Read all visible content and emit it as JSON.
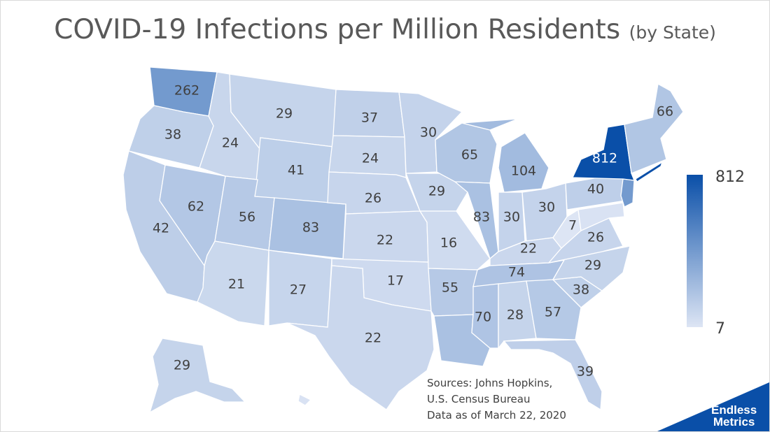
{
  "title": {
    "main": "COVID-19 Infections per Million Residents",
    "sub": "(by State)"
  },
  "legend": {
    "max": "812",
    "min": "7",
    "color_max": "#0a4fa8",
    "color_min": "#dde5f4"
  },
  "sources": {
    "line1": "Sources: Johns Hopkins,",
    "line2": "U.S. Census Bureau",
    "line3": "Data as of March 22, 2020"
  },
  "brand": {
    "line1": "Endless",
    "line2": "Metrics"
  },
  "chart_data": {
    "type": "choropleth",
    "title": "COVID-19 Infections per Million Residents (by State)",
    "region_level": "US states",
    "color_scale": {
      "min": 7,
      "max": 812
    },
    "states": [
      {
        "state": "WA",
        "value": 262
      },
      {
        "state": "OR",
        "value": 38
      },
      {
        "state": "CA",
        "value": 42
      },
      {
        "state": "NV",
        "value": 62
      },
      {
        "state": "ID",
        "value": 24
      },
      {
        "state": "MT",
        "value": 29
      },
      {
        "state": "WY",
        "value": 41
      },
      {
        "state": "UT",
        "value": 56
      },
      {
        "state": "CO",
        "value": 83
      },
      {
        "state": "AZ",
        "value": 21
      },
      {
        "state": "NM",
        "value": 27
      },
      {
        "state": "ND",
        "value": 37
      },
      {
        "state": "SD",
        "value": 24
      },
      {
        "state": "NE",
        "value": 26
      },
      {
        "state": "KS",
        "value": 22
      },
      {
        "state": "OK",
        "value": 17
      },
      {
        "state": "TX",
        "value": 22
      },
      {
        "state": "MN",
        "value": 30
      },
      {
        "state": "IA",
        "value": 29
      },
      {
        "state": "MO",
        "value": 16
      },
      {
        "state": "AR",
        "value": 55
      },
      {
        "state": "LA",
        "value": null
      },
      {
        "state": "WI",
        "value": 65
      },
      {
        "state": "IL",
        "value": 83
      },
      {
        "state": "MI",
        "value": 104
      },
      {
        "state": "IN",
        "value": 30
      },
      {
        "state": "OH",
        "value": 30
      },
      {
        "state": "KY",
        "value": 22
      },
      {
        "state": "TN",
        "value": 74
      },
      {
        "state": "MS",
        "value": 70
      },
      {
        "state": "AL",
        "value": 28
      },
      {
        "state": "GA",
        "value": 57
      },
      {
        "state": "FL",
        "value": 39
      },
      {
        "state": "SC",
        "value": 38
      },
      {
        "state": "NC",
        "value": 29
      },
      {
        "state": "VA",
        "value": 26
      },
      {
        "state": "WV",
        "value": 7
      },
      {
        "state": "PA",
        "value": 40
      },
      {
        "state": "NY",
        "value": 812
      },
      {
        "state": "ME",
        "value": 66
      },
      {
        "state": "AK",
        "value": 29
      },
      {
        "state": "NJ",
        "value": null
      },
      {
        "state": "HI",
        "value": null
      }
    ]
  }
}
